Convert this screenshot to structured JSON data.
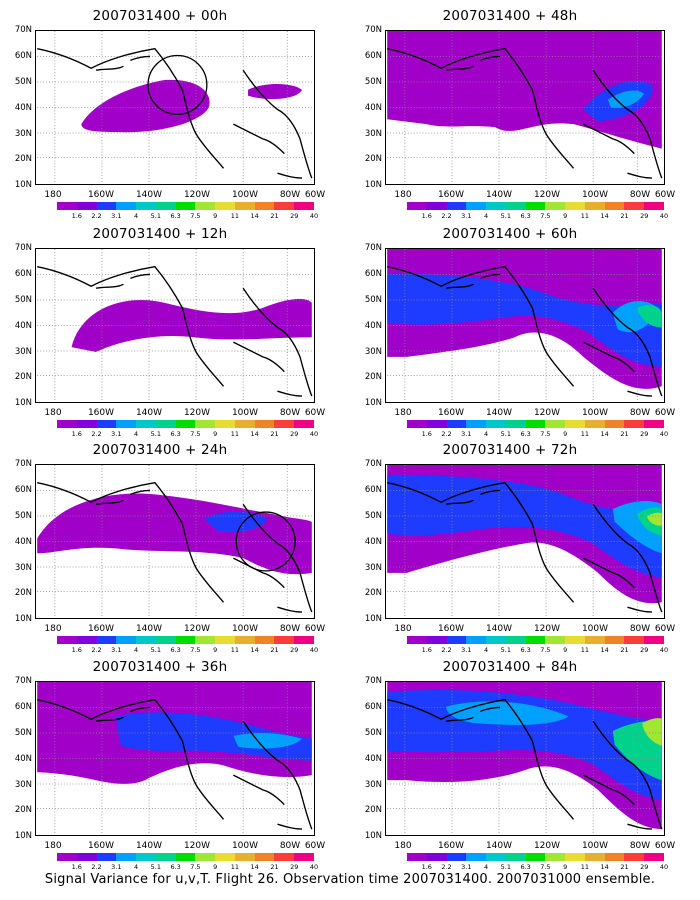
{
  "panels": [
    {
      "title": "2007031400 + 00h"
    },
    {
      "title": "2007031400 + 48h"
    },
    {
      "title": "2007031400 + 12h"
    },
    {
      "title": "2007031400 + 60h"
    },
    {
      "title": "2007031400 + 24h"
    },
    {
      "title": "2007031400 + 72h"
    },
    {
      "title": "2007031400 + 36h"
    },
    {
      "title": "2007031400 + 84h"
    }
  ],
  "lat_labels": [
    "70N",
    "60N",
    "50N",
    "40N",
    "30N",
    "20N",
    "10N"
  ],
  "lon_labels": [
    "180",
    "160W",
    "140W",
    "120W",
    "100W",
    "80W",
    "60W"
  ],
  "colorbar": {
    "colors": [
      "#a000c8",
      "#8200dc",
      "#1e3cff",
      "#00a0ff",
      "#00c8c8",
      "#00d28c",
      "#00dc00",
      "#a0e632",
      "#e6dc32",
      "#e6af2d",
      "#f08228",
      "#fa3c3c",
      "#f00082"
    ],
    "labels": [
      "1.6",
      "2.2",
      "3.1",
      "4",
      "5.1",
      "6.3",
      "7.5",
      "9",
      "11",
      "14",
      "21",
      "29",
      "40"
    ]
  },
  "footer": "Signal Variance for u,v,T. Flight 26. Observation time 2007031400. 2007031000 ensemble."
}
